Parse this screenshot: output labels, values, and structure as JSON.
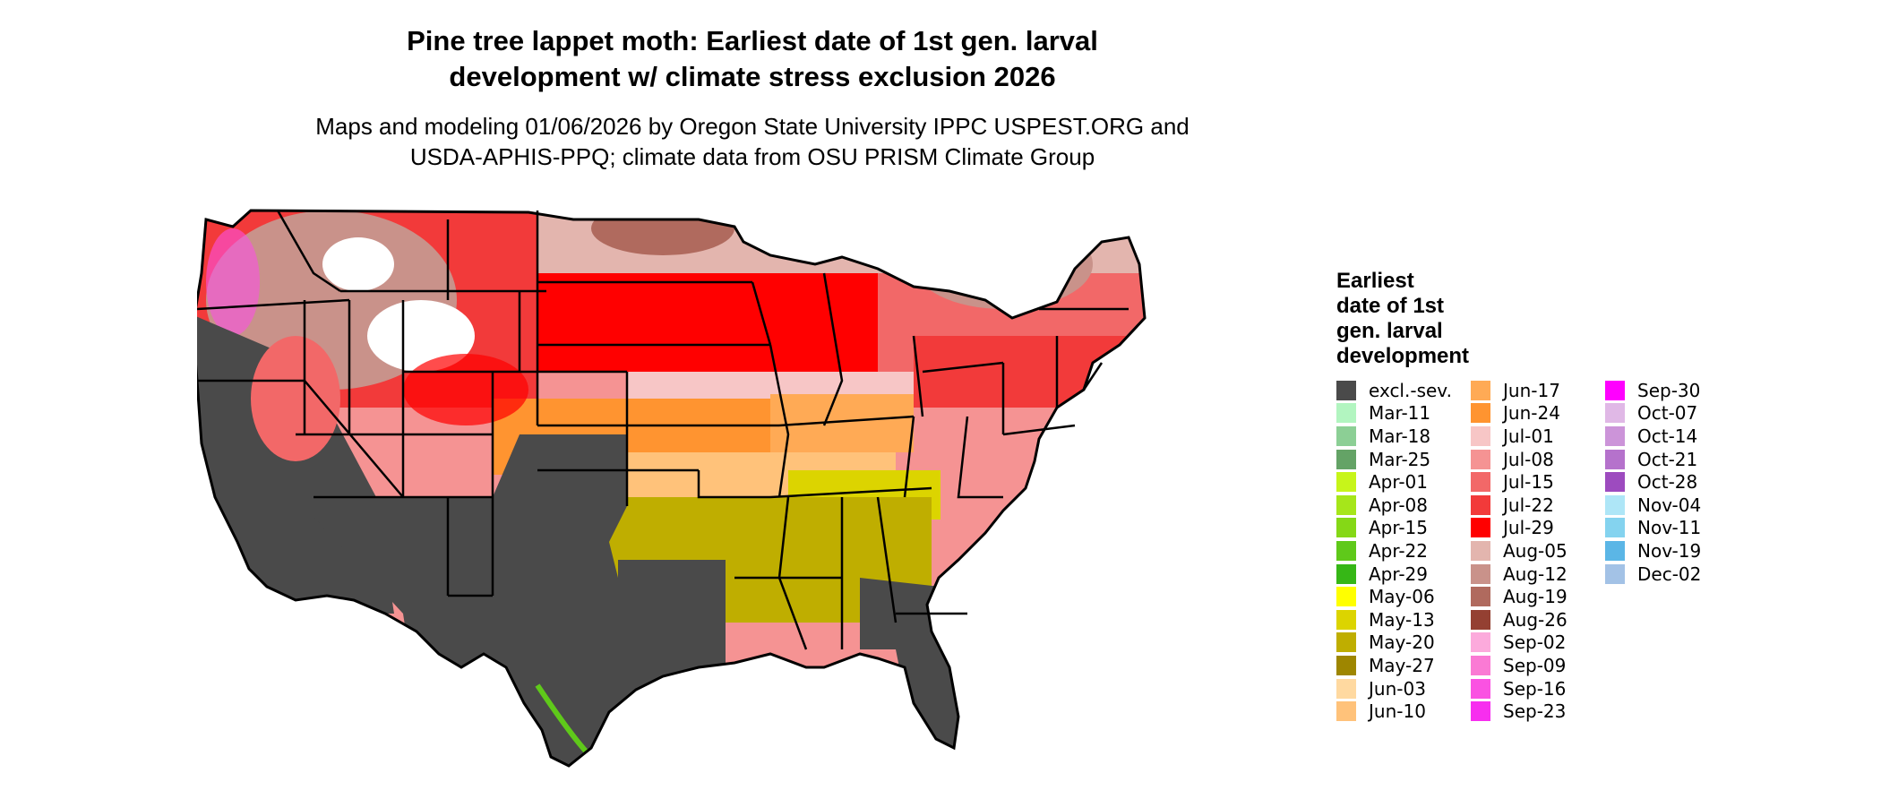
{
  "map": {
    "title_line1": "Pine tree lappet moth: Earliest date of 1st gen. larval",
    "title_line2": "development w/ climate stress exclusion 2026",
    "subtitle_line1": "Maps and modeling 01/06/2026 by Oregon State University IPPC USPEST.ORG and",
    "subtitle_line2": "USDA-APHIS-PPQ; climate data from OSU PRISM Climate Group",
    "region": "Contiguous United States",
    "colors": {
      "excluded": "#4a4a4a",
      "ocean": "#ffffff",
      "state_border": "#000000"
    }
  },
  "legend": {
    "title_line1": "Earliest",
    "title_line2": "date of 1st",
    "title_line3": "gen. larval",
    "title_line4": "development",
    "columns": [
      [
        {
          "label": "excl.-sev.",
          "color": "#4a4a4a"
        },
        {
          "label": "Mar-11",
          "color": "#b2f5c0"
        },
        {
          "label": "Mar-18",
          "color": "#8ccf95"
        },
        {
          "label": "Mar-25",
          "color": "#64a366"
        },
        {
          "label": "Apr-01",
          "color": "#c7f51a"
        },
        {
          "label": "Apr-08",
          "color": "#a6e61a"
        },
        {
          "label": "Apr-15",
          "color": "#85d816"
        },
        {
          "label": "Apr-22",
          "color": "#5fc91a"
        },
        {
          "label": "Apr-29",
          "color": "#36b716"
        },
        {
          "label": "May-06",
          "color": "#ffff00"
        },
        {
          "label": "May-13",
          "color": "#dcd400"
        },
        {
          "label": "May-20",
          "color": "#bfae00"
        },
        {
          "label": "May-27",
          "color": "#9e8600"
        },
        {
          "label": "Jun-03",
          "color": "#ffd9a0"
        },
        {
          "label": "Jun-10",
          "color": "#ffc27a"
        }
      ],
      [
        {
          "label": "Jun-17",
          "color": "#ffaa55"
        },
        {
          "label": "Jun-24",
          "color": "#ff9430"
        },
        {
          "label": "Jul-01",
          "color": "#f7c6c6"
        },
        {
          "label": "Jul-08",
          "color": "#f59393"
        },
        {
          "label": "Jul-15",
          "color": "#f26868"
        },
        {
          "label": "Jul-22",
          "color": "#f23a3a"
        },
        {
          "label": "Jul-29",
          "color": "#ff0000"
        },
        {
          "label": "Aug-05",
          "color": "#e3b5ae"
        },
        {
          "label": "Aug-12",
          "color": "#c9928a"
        },
        {
          "label": "Aug-19",
          "color": "#b06a5e"
        },
        {
          "label": "Aug-26",
          "color": "#944032"
        },
        {
          "label": "Sep-02",
          "color": "#fcaadc"
        },
        {
          "label": "Sep-09",
          "color": "#fa7ad4"
        },
        {
          "label": "Sep-16",
          "color": "#fa52e2"
        },
        {
          "label": "Sep-23",
          "color": "#f72eef"
        }
      ],
      [
        {
          "label": "Sep-30",
          "color": "#ff00ff"
        },
        {
          "label": "Oct-07",
          "color": "#e0b8e6"
        },
        {
          "label": "Oct-14",
          "color": "#cc94d9"
        },
        {
          "label": "Oct-21",
          "color": "#b572cc"
        },
        {
          "label": "Oct-28",
          "color": "#9d4bbf"
        },
        {
          "label": "Nov-04",
          "color": "#aee6f7"
        },
        {
          "label": "Nov-11",
          "color": "#84d3ef"
        },
        {
          "label": "Nov-19",
          "color": "#5bb6e6"
        },
        {
          "label": "Dec-02",
          "color": "#a3c2e6"
        }
      ]
    ]
  }
}
